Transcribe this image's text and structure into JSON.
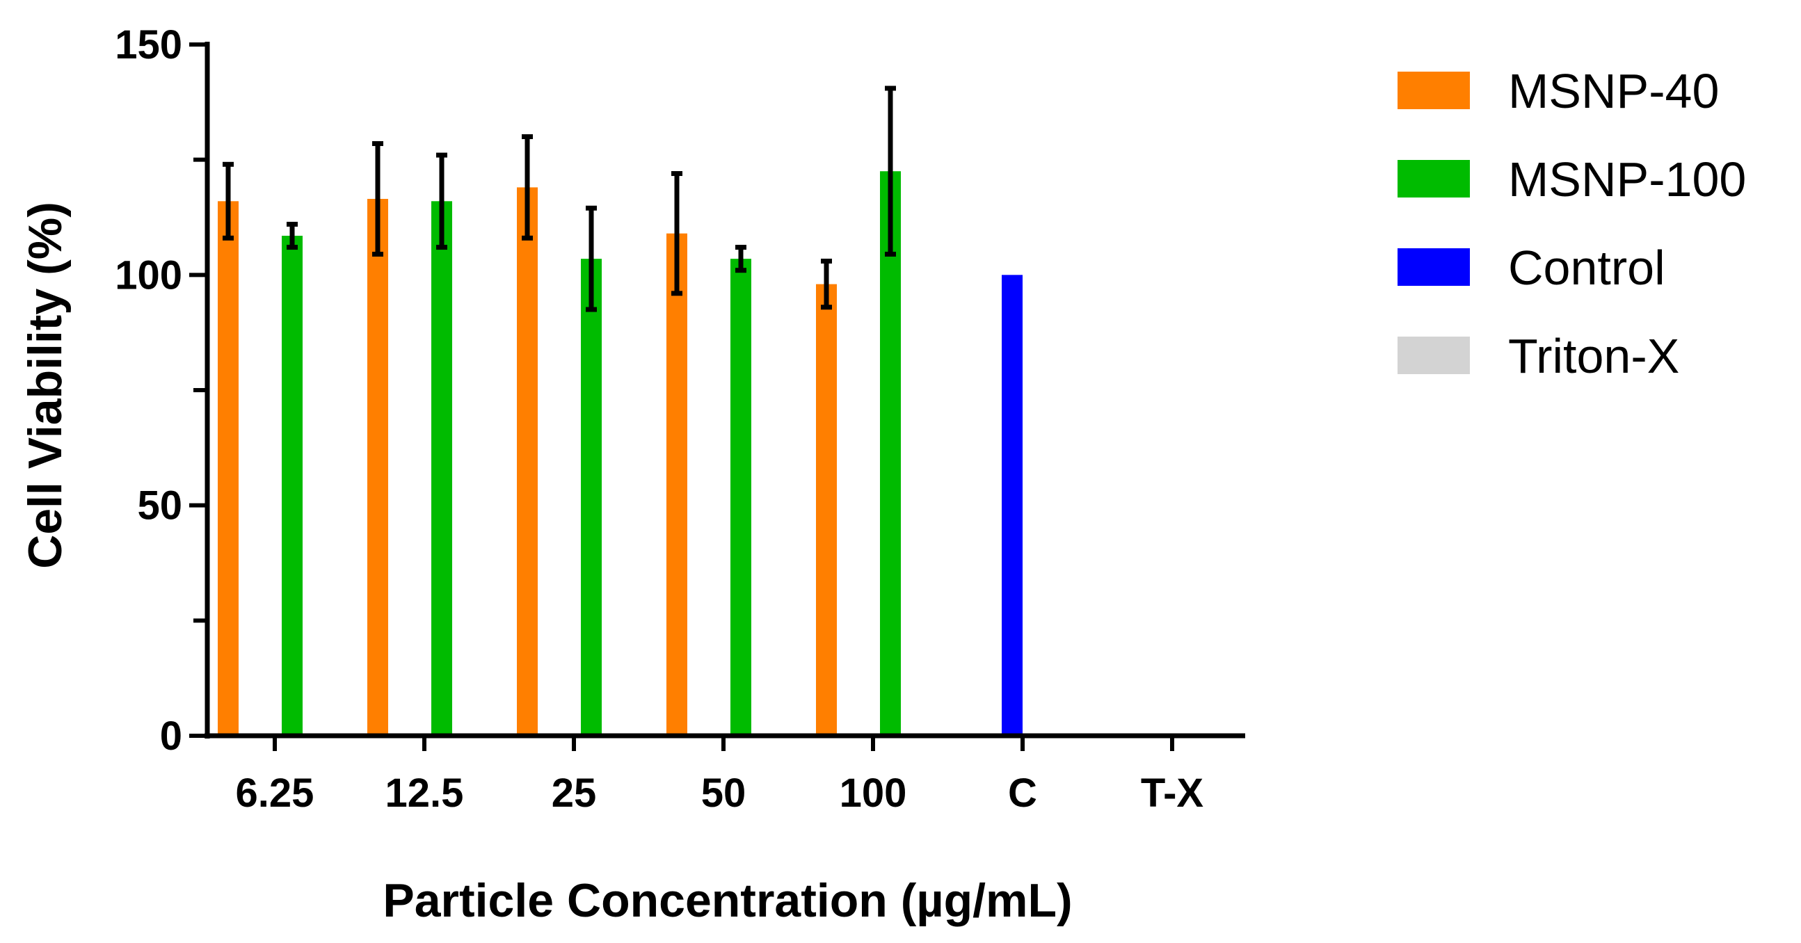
{
  "chart_data": {
    "type": "bar",
    "title": "",
    "xlabel": "Particle Concentration (µg/mL)",
    "ylabel": "Cell Viability (%)",
    "ylim": [
      0,
      150
    ],
    "yticks": [
      "0",
      "50",
      "100",
      "150"
    ],
    "categories": [
      "6.25",
      "12.5",
      "25",
      "50",
      "100",
      "C",
      "T-X"
    ],
    "series": [
      {
        "name": "MSNP-40",
        "color": "#FF7F00",
        "values": [
          116,
          116.5,
          119,
          109,
          98,
          null,
          null
        ],
        "errors": [
          8,
          12,
          11,
          13,
          5,
          null,
          null
        ]
      },
      {
        "name": "MSNP-100",
        "color": "#00BB00",
        "values": [
          108.5,
          116,
          103.5,
          103.5,
          122.5,
          null,
          null
        ],
        "errors": [
          2.5,
          10,
          11,
          2.5,
          18,
          null,
          null
        ]
      },
      {
        "name": "Control",
        "color": "#0000FF",
        "values": [
          null,
          null,
          null,
          null,
          null,
          100,
          null
        ],
        "errors": [
          null,
          null,
          null,
          null,
          null,
          null,
          null
        ]
      },
      {
        "name": "Triton-X",
        "color": "#D3D3D3",
        "values": [
          null,
          null,
          null,
          null,
          null,
          null,
          0
        ],
        "errors": [
          null,
          null,
          null,
          null,
          null,
          null,
          null
        ]
      }
    ],
    "legend": "right"
  }
}
